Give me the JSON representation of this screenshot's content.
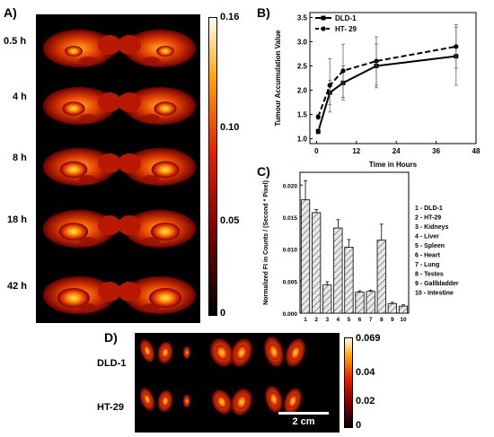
{
  "panel_a": {
    "label": "A)",
    "time_labels": [
      "0.5 h",
      "4 h",
      "8 h",
      "18 h",
      "42 h"
    ],
    "colorbar_ticks": [
      "0.16",
      "0.10",
      "0.05",
      "0"
    ]
  },
  "panel_d": {
    "label": "D)",
    "row_labels": [
      "DLD-1",
      "HT-29"
    ],
    "scalebar_label": "2 cm",
    "colorbar_ticks": [
      "0.069",
      "0.04",
      "0.02",
      "0"
    ]
  },
  "chart_data": [
    {
      "panel": "B)",
      "type": "line",
      "xlabel": "Time in Hours",
      "ylabel": "Tumour Accumulation Value",
      "xlim": [
        -2,
        48
      ],
      "ylim": [
        0.9,
        3.6
      ],
      "xticks": [
        0,
        12,
        24,
        36,
        48
      ],
      "yticks": [
        1.0,
        1.5,
        2.0,
        2.5,
        3.0,
        3.5
      ],
      "legend_position": "top-left",
      "series": [
        {
          "name": "DLD-1",
          "style": "solid",
          "marker": "square",
          "x": [
            0.5,
            4,
            8,
            18,
            42
          ],
          "y": [
            1.15,
            1.95,
            2.15,
            2.5,
            2.7
          ],
          "err": [
            0.05,
            0.25,
            0.35,
            0.45,
            0.6
          ]
        },
        {
          "name": "HT- 29",
          "style": "dashed",
          "marker": "circle",
          "x": [
            0.5,
            4,
            8,
            18,
            42
          ],
          "y": [
            1.45,
            2.1,
            2.4,
            2.6,
            2.9
          ],
          "err": [
            0.05,
            0.55,
            0.55,
            0.5,
            0.45
          ]
        }
      ]
    },
    {
      "panel": "C)",
      "type": "bar",
      "ylabel": "Normalized FI in Counts / (Second * Pixel)",
      "categories": [
        "1",
        "2",
        "3",
        "4",
        "5",
        "6",
        "7",
        "8",
        "9",
        "10"
      ],
      "values": [
        0.0177,
        0.0157,
        0.0044,
        0.0133,
        0.0103,
        0.0033,
        0.0034,
        0.0114,
        0.0015,
        0.0011
      ],
      "errors": [
        0.003,
        0.0005,
        0.0005,
        0.0013,
        0.0012,
        0.0002,
        0.0002,
        0.0025,
        0.0002,
        0.0002
      ],
      "ylim": [
        0,
        0.022
      ],
      "yticks": [
        "0.000",
        "0.005",
        "0.010",
        "0.015",
        "0.020"
      ],
      "legend": [
        "1 - DLD-1",
        "2 - HT-29",
        "3 - Kidneys",
        "4 - Liver",
        "5 - Spleen",
        "6 - Heart",
        "7 - Lung",
        "8 - Testes",
        "9 - Gallbladder",
        "10 - Intestine"
      ]
    }
  ]
}
